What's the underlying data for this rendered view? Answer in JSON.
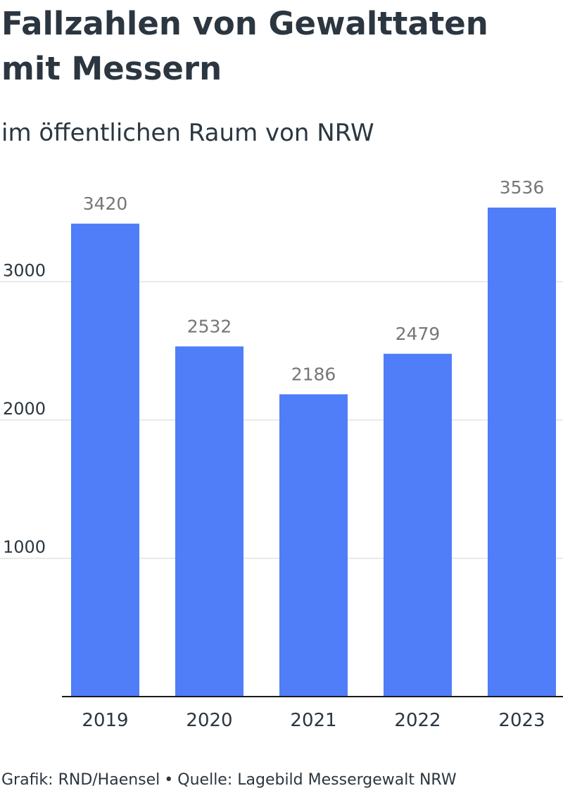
{
  "header": {
    "title": "Fallzahlen von Gewalttaten mit Messern",
    "subtitle": "im öffentlichen Raum von NRW"
  },
  "footer": {
    "credit": "Grafik: RND/Haensel",
    "separator": "•",
    "source": "Quelle: Lagebild Messergewalt NRW"
  },
  "chart_data": {
    "type": "bar",
    "title": "Fallzahlen von Gewalttaten mit Messern",
    "subtitle": "im öffentlichen Raum von NRW",
    "categories": [
      "2019",
      "2020",
      "2021",
      "2022",
      "2023"
    ],
    "values": [
      3420,
      2532,
      2186,
      2479,
      3536
    ],
    "yticks": [
      1000,
      2000,
      3000
    ],
    "ylim": [
      0,
      3536
    ],
    "xlabel": "",
    "ylabel": "",
    "grid": true,
    "bar_color": "#4f7ef8",
    "grid_color": "#e3e3e3",
    "axis_color": "#1a1a1a",
    "value_label_color": "#767676"
  }
}
